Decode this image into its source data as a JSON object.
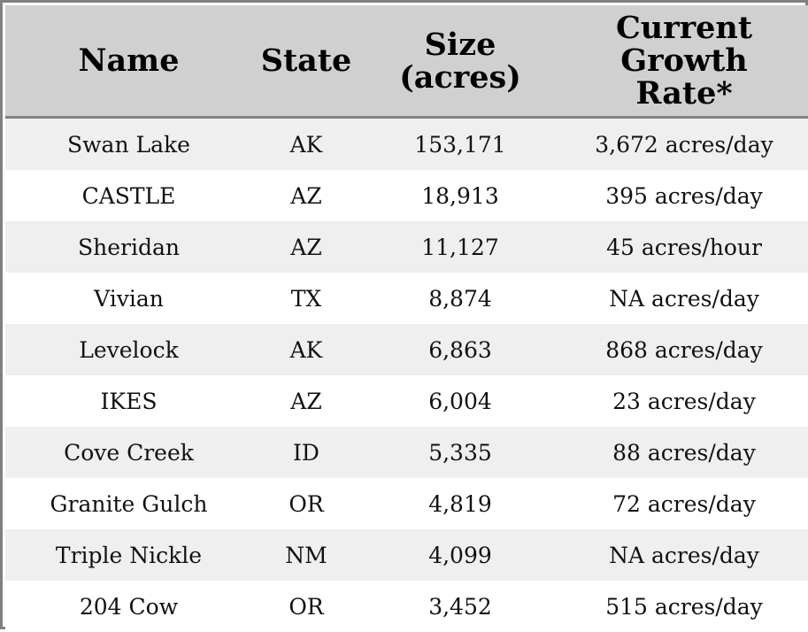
{
  "chart_data": {
    "type": "table",
    "columns": [
      {
        "key": "name",
        "lines": [
          "Name"
        ]
      },
      {
        "key": "state",
        "lines": [
          "State"
        ]
      },
      {
        "key": "size",
        "lines": [
          "Size",
          "(acres)"
        ]
      },
      {
        "key": "rate",
        "lines": [
          "Current",
          "Growth",
          "Rate*"
        ]
      }
    ],
    "rows": [
      {
        "name": "Swan Lake",
        "state": "AK",
        "size": "153,171",
        "rate": "3,672 acres/day"
      },
      {
        "name": "CASTLE",
        "state": "AZ",
        "size": "18,913",
        "rate": "395 acres/day"
      },
      {
        "name": "Sheridan",
        "state": "AZ",
        "size": "11,127",
        "rate": "45 acres/hour"
      },
      {
        "name": "Vivian",
        "state": "TX",
        "size": "8,874",
        "rate": "NA acres/day"
      },
      {
        "name": "Levelock",
        "state": "AK",
        "size": "6,863",
        "rate": "868 acres/day"
      },
      {
        "name": "IKES",
        "state": "AZ",
        "size": "6,004",
        "rate": "23 acres/day"
      },
      {
        "name": "Cove Creek",
        "state": "ID",
        "size": "5,335",
        "rate": "88 acres/day"
      },
      {
        "name": "Granite Gulch",
        "state": "OR",
        "size": "4,819",
        "rate": "72 acres/day"
      },
      {
        "name": "Triple Nickle",
        "state": "NM",
        "size": "4,099",
        "rate": "NA acres/day"
      },
      {
        "name": "204 Cow",
        "state": "OR",
        "size": "3,452",
        "rate": "515 acres/day"
      }
    ],
    "colors": {
      "header_bg": "#d0d0d0",
      "row_alt_bg": "#efefef",
      "row_bg": "#ffffff",
      "border": "#808080"
    }
  }
}
